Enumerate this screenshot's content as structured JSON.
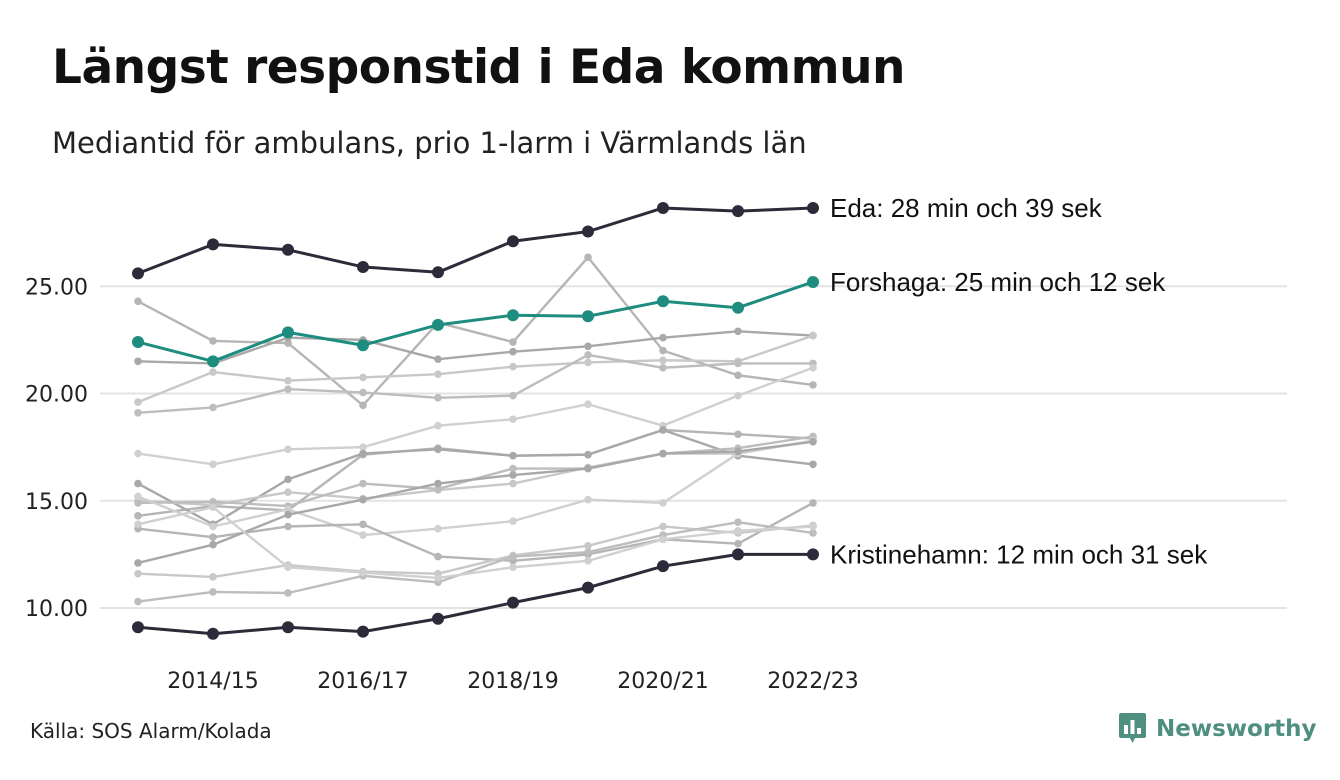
{
  "title": "Längst responstid i Eda kommun",
  "subtitle": "Mediantid för ambulans, prio 1-larm i Värmlands län",
  "source": "Källa: SOS Alarm/Kolada",
  "brand": "Newsworthy",
  "colors": {
    "highlight_dark": "#2b2b3a",
    "highlight_teal": "#1e8c7e",
    "background_lines": [
      "#b5b5b5",
      "#a8a8a8",
      "#c8c8c8",
      "#bdbdbd",
      "#d0d0d0"
    ],
    "grid": "#e3e3e3",
    "brand": "#4e8f80"
  },
  "chart_data": {
    "type": "line",
    "x": [
      "2013/14",
      "2014/15",
      "2015/16",
      "2016/17",
      "2017/18",
      "2018/19",
      "2019/20",
      "2020/21",
      "2021/22",
      "2022/23"
    ],
    "x_tick_labels": [
      "2014/15",
      "2016/17",
      "2018/19",
      "2020/21",
      "2022/23"
    ],
    "y_tick_labels": [
      "10.00",
      "15.00",
      "20.00",
      "25.00"
    ],
    "ylim": [
      8,
      29
    ],
    "grid": "horizontal",
    "highlighted_series": [
      {
        "name": "Eda",
        "label": "Eda: 28 min och 39 sek",
        "color": "#2b2b3a",
        "values": [
          25.6,
          26.95,
          26.7,
          25.9,
          25.65,
          27.1,
          27.55,
          28.65,
          28.5,
          28.65
        ]
      },
      {
        "name": "Forshaga",
        "label": "Forshaga: 25 min och 12 sek",
        "color": "#1e8c7e",
        "values": [
          22.4,
          21.5,
          22.85,
          22.25,
          23.2,
          23.65,
          23.6,
          24.3,
          24.0,
          25.2
        ]
      },
      {
        "name": "Kristinehamn",
        "label": "Kristinehamn: 12 min och 31 sek",
        "color": "#2b2b3a",
        "values": [
          9.1,
          8.8,
          9.1,
          8.9,
          9.5,
          10.25,
          10.95,
          11.95,
          12.5,
          12.5
        ]
      }
    ],
    "background_series": [
      {
        "values": [
          24.3,
          22.45,
          22.35,
          19.45,
          23.3,
          22.4,
          26.35,
          22.0,
          20.85,
          20.4
        ]
      },
      {
        "values": [
          21.5,
          21.4,
          22.6,
          22.5,
          21.6,
          21.95,
          22.2,
          22.6,
          22.9,
          22.7
        ]
      },
      {
        "values": [
          19.6,
          21.0,
          20.6,
          20.75,
          20.9,
          21.25,
          21.45,
          21.55,
          21.5,
          22.7
        ]
      },
      {
        "values": [
          19.1,
          19.35,
          20.2,
          20.05,
          19.8,
          19.9,
          21.8,
          21.2,
          21.4,
          21.4
        ]
      },
      {
        "values": [
          17.2,
          16.7,
          17.4,
          17.5,
          18.5,
          18.8,
          19.5,
          18.5,
          19.9,
          21.2
        ]
      },
      {
        "values": [
          14.3,
          14.75,
          14.55,
          17.15,
          17.45,
          17.1,
          17.15,
          18.3,
          18.1,
          17.9
        ]
      },
      {
        "values": [
          15.8,
          13.9,
          16.0,
          17.2,
          17.4,
          17.1,
          17.15,
          18.3,
          17.1,
          16.7
        ]
      },
      {
        "values": [
          15.0,
          14.8,
          15.4,
          15.1,
          15.5,
          15.8,
          16.55,
          17.2,
          17.2,
          17.8
        ]
      },
      {
        "values": [
          14.9,
          14.95,
          14.75,
          15.8,
          15.55,
          16.5,
          16.5,
          17.2,
          17.45,
          18.0
        ]
      },
      {
        "values": [
          15.2,
          13.8,
          14.6,
          13.4,
          13.7,
          14.05,
          15.05,
          14.9,
          17.2,
          17.8
        ]
      },
      {
        "values": [
          13.7,
          13.3,
          13.8,
          13.9,
          12.4,
          12.2,
          12.5,
          13.2,
          13.0,
          14.9
        ]
      },
      {
        "values": [
          12.1,
          12.95,
          14.35,
          15.05,
          15.8,
          16.2,
          16.5,
          17.2,
          17.3,
          17.75
        ]
      },
      {
        "values": [
          11.6,
          11.45,
          12.0,
          11.7,
          11.6,
          12.45,
          12.9,
          13.8,
          13.5,
          13.85
        ]
      },
      {
        "values": [
          10.3,
          10.75,
          10.7,
          11.5,
          11.2,
          12.4,
          12.6,
          13.4,
          14.0,
          13.5
        ]
      },
      {
        "values": [
          13.9,
          14.7,
          11.9,
          11.65,
          11.4,
          11.9,
          12.2,
          13.2,
          13.6,
          13.8
        ]
      }
    ]
  }
}
